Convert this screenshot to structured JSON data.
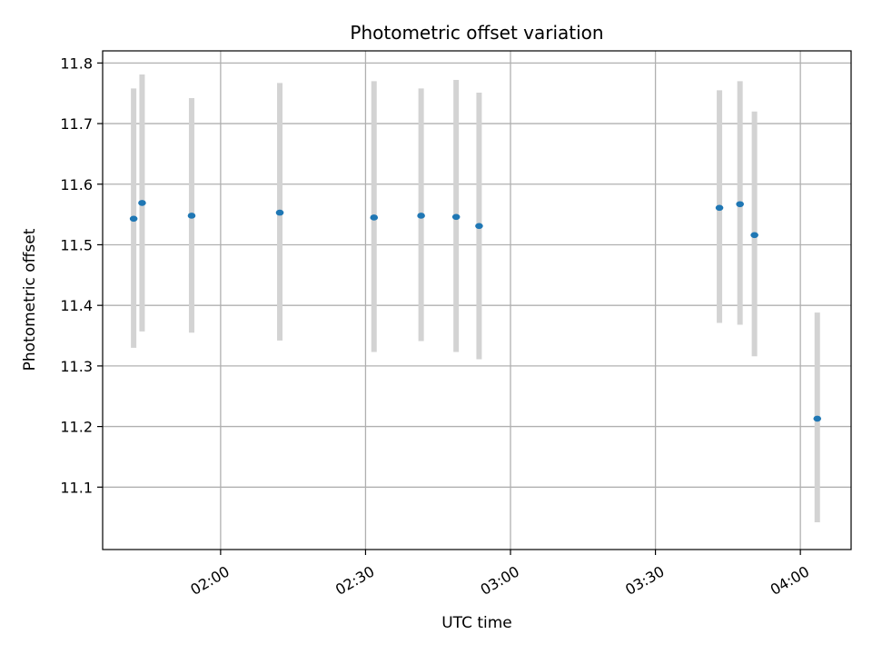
{
  "chart_data": {
    "type": "scatter",
    "title": "Photometric offset variation",
    "xlabel": "UTC time",
    "ylabel": "Photometric offset",
    "x_axis": {
      "kind": "time",
      "min": "01:35:35",
      "max": "04:10:30",
      "ticks": [
        "02:00",
        "02:30",
        "03:00",
        "03:30",
        "04:00"
      ]
    },
    "y_axis": {
      "min": 10.997,
      "max": 11.82,
      "ticks": [
        11.1,
        11.2,
        11.3,
        11.4,
        11.5,
        11.6,
        11.7,
        11.8
      ]
    },
    "grid": true,
    "points": [
      {
        "x": "01:42:00",
        "y": 11.543,
        "low": 11.33,
        "high": 11.758
      },
      {
        "x": "01:43:45",
        "y": 11.569,
        "low": 11.357,
        "high": 11.781
      },
      {
        "x": "01:54:00",
        "y": 11.548,
        "low": 11.355,
        "high": 11.742
      },
      {
        "x": "02:12:15",
        "y": 11.553,
        "low": 11.342,
        "high": 11.767
      },
      {
        "x": "02:31:45",
        "y": 11.545,
        "low": 11.323,
        "high": 11.77
      },
      {
        "x": "02:41:30",
        "y": 11.548,
        "low": 11.341,
        "high": 11.758
      },
      {
        "x": "02:48:45",
        "y": 11.546,
        "low": 11.323,
        "high": 11.772
      },
      {
        "x": "02:53:30",
        "y": 11.531,
        "low": 11.311,
        "high": 11.751
      },
      {
        "x": "03:43:15",
        "y": 11.561,
        "low": 11.371,
        "high": 11.755
      },
      {
        "x": "03:47:30",
        "y": 11.567,
        "low": 11.368,
        "high": 11.77
      },
      {
        "x": "03:50:30",
        "y": 11.516,
        "low": 11.316,
        "high": 11.72
      },
      {
        "x": "04:03:30",
        "y": 11.213,
        "low": 11.042,
        "high": 11.388
      }
    ],
    "colors": {
      "point": "#1f77b4",
      "error_bar": "#d3d3d3",
      "grid": "#b0b0b0",
      "axes": "#000000"
    }
  }
}
